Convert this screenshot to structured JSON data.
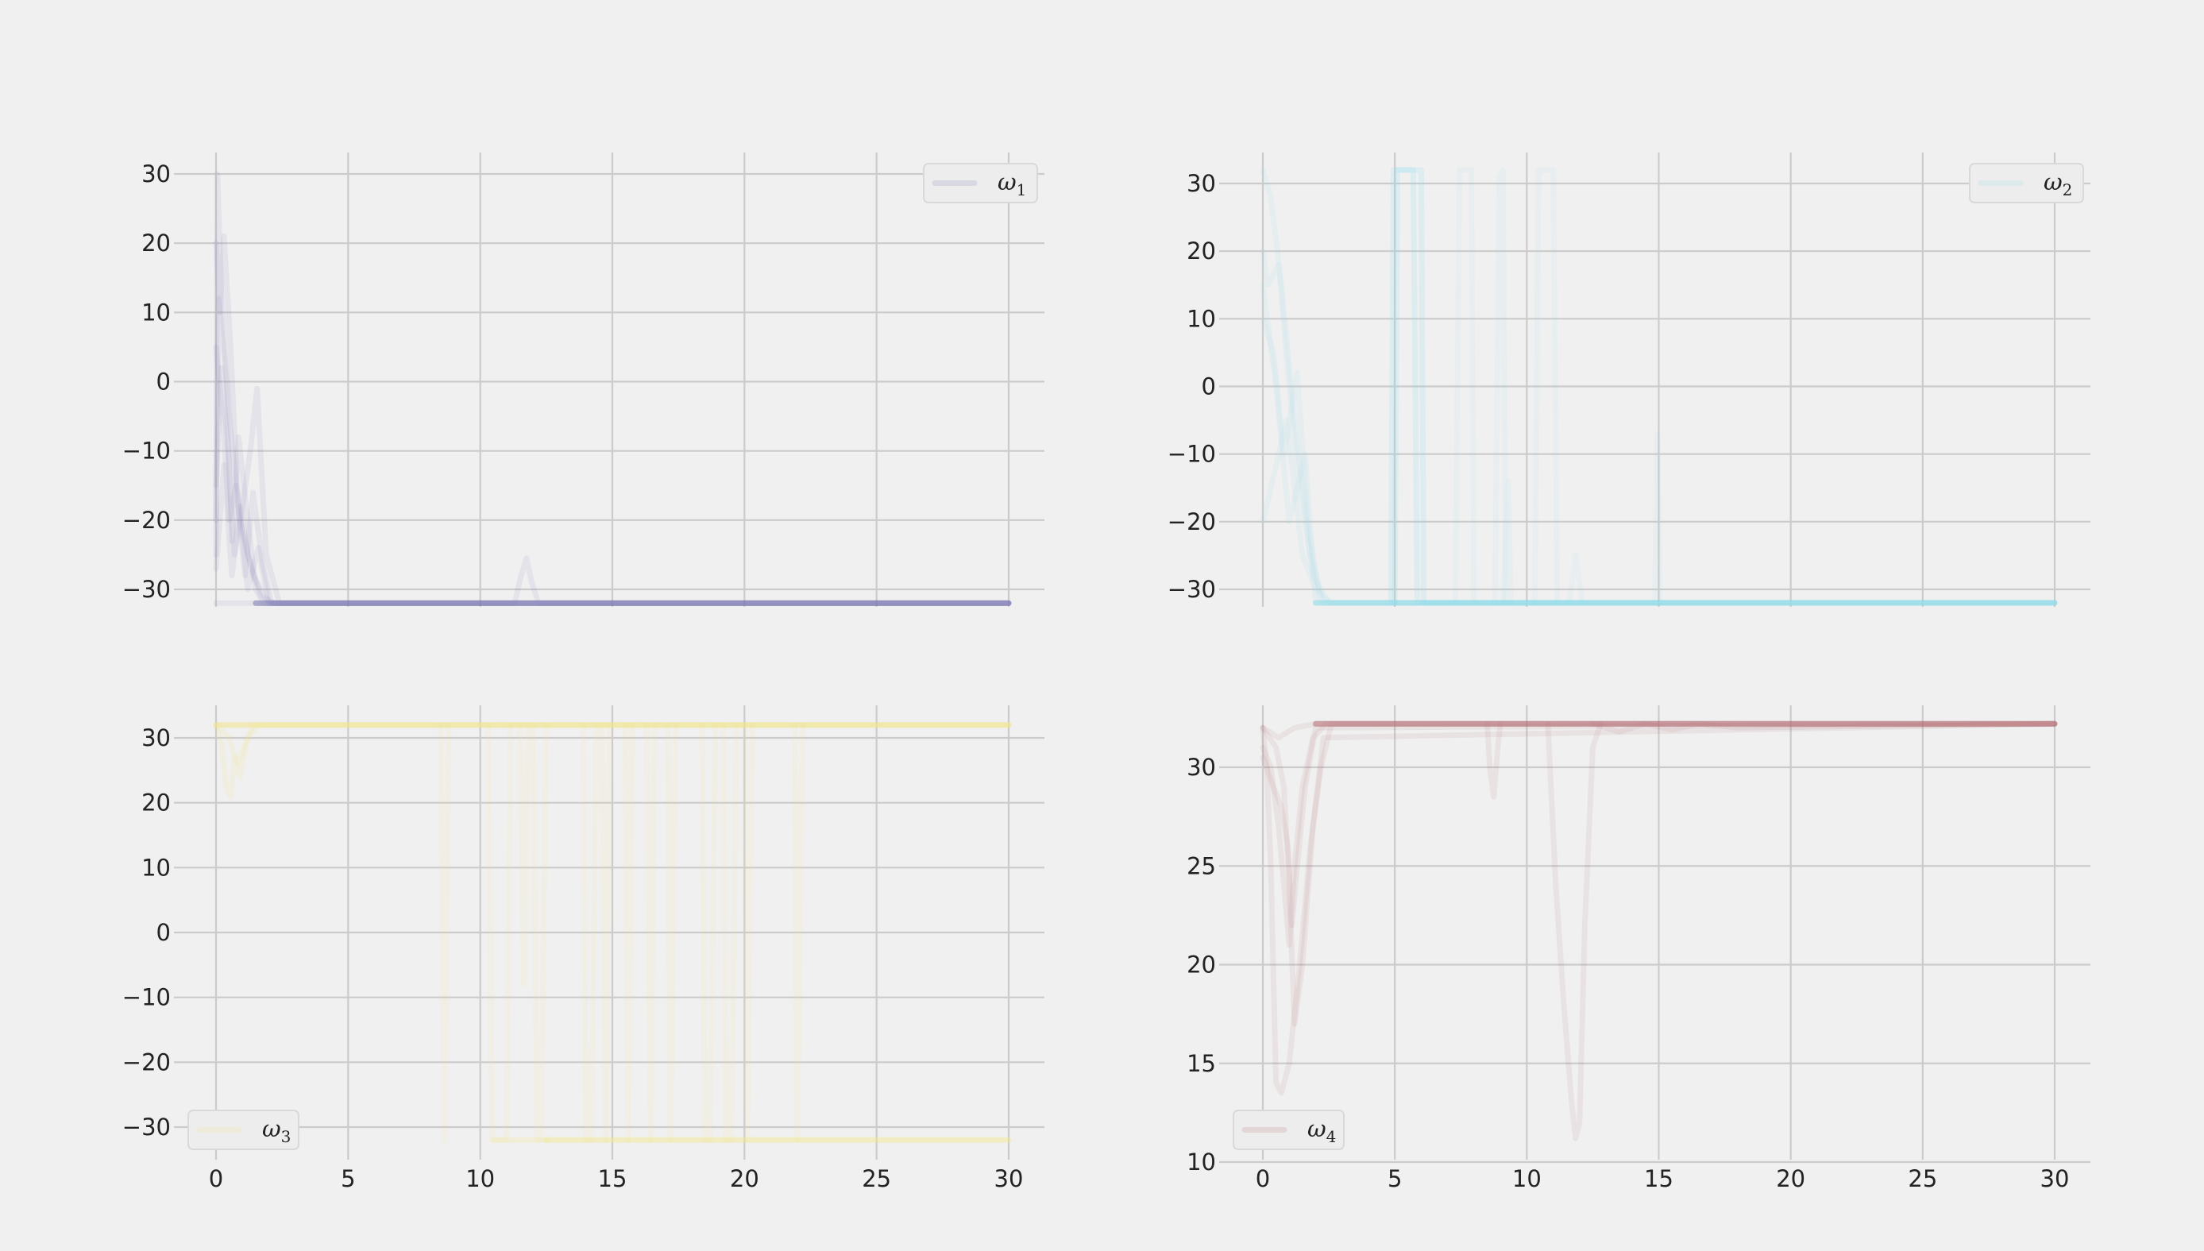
{
  "chart_data": [
    {
      "type": "line",
      "xlim": [
        0,
        30
      ],
      "ylim": [
        -34,
        33
      ],
      "xticks": [
        "0",
        "5",
        "10",
        "15",
        "20",
        "25",
        "30"
      ],
      "yticks": [
        "−30",
        "−20",
        "−10",
        "0",
        "10",
        "20",
        "30"
      ],
      "show_x_ticklabels": false,
      "grid": true,
      "legend": {
        "label": "ω",
        "subscript": "1",
        "placement": "top-right"
      },
      "color": "#7b78b5",
      "series": [
        {
          "opacity": 0.1,
          "x": [
            0,
            0.05,
            0.2,
            0.5,
            0.9,
            1.4,
            2.0,
            30
          ],
          "y": [
            -25,
            30,
            13,
            -5,
            -20,
            -28,
            -32,
            -32
          ]
        },
        {
          "opacity": 0.1,
          "x": [
            0,
            0.15,
            0.3,
            0.55,
            0.8,
            1.2,
            1.7,
            2.2,
            30
          ],
          "y": [
            20,
            10,
            21,
            5,
            -15,
            -25,
            -31,
            -32,
            -32
          ]
        },
        {
          "opacity": 0.1,
          "x": [
            0,
            0.2,
            0.45,
            0.7,
            1.0,
            1.3,
            1.55,
            1.9,
            2.4,
            30
          ],
          "y": [
            -15,
            2,
            -10,
            -25,
            -18,
            -10,
            -1,
            -25,
            -32,
            -32
          ]
        },
        {
          "opacity": 0.1,
          "x": [
            0,
            0.25,
            0.5,
            0.75,
            1.1,
            1.4,
            1.75,
            2.1,
            30
          ],
          "y": [
            5,
            -5,
            -20,
            -15,
            -28,
            -16,
            -26,
            -32,
            -32
          ]
        },
        {
          "opacity": 0.1,
          "x": [
            0,
            0.1,
            0.4,
            0.6,
            0.85,
            1.2,
            1.5,
            1.8,
            30
          ],
          "y": [
            -20,
            12,
            0,
            -23,
            -8,
            -20,
            -30,
            -32,
            -32
          ]
        },
        {
          "opacity": 0.1,
          "x": [
            0,
            0.3,
            0.6,
            0.9,
            1.2,
            1.6,
            2.0,
            30
          ],
          "y": [
            -27,
            -12,
            -28,
            -18,
            -30,
            -24,
            -32,
            -32
          ]
        },
        {
          "opacity": 0.1,
          "x": [
            0,
            2.2,
            11.3,
            11.55,
            11.75,
            11.95,
            12.2,
            30
          ],
          "y": [
            -32,
            -32,
            -32,
            -28,
            -25.5,
            -29,
            -32,
            -32
          ]
        },
        {
          "opacity": 0.55,
          "x": [
            1.5,
            30
          ],
          "y": [
            -32,
            -32
          ]
        }
      ]
    },
    {
      "type": "line",
      "xlim": [
        0,
        30
      ],
      "ylim": [
        -35,
        34
      ],
      "xticks": [
        "0",
        "5",
        "10",
        "15",
        "20",
        "25",
        "30"
      ],
      "yticks": [
        "−30",
        "−20",
        "−10",
        "0",
        "10",
        "20",
        "30"
      ],
      "show_x_ticklabels": false,
      "grid": true,
      "legend": {
        "label": "ω",
        "subscript": "2",
        "placement": "top-right"
      },
      "color": "#8fdcea",
      "series": [
        {
          "opacity": 0.1,
          "x": [
            0,
            0.3,
            0.7,
            1.2,
            1.8,
            2.3,
            30
          ],
          "y": [
            32,
            28,
            15,
            -5,
            -25,
            -32,
            -32
          ]
        },
        {
          "opacity": 0.1,
          "x": [
            0,
            0.2,
            0.6,
            1.0,
            1.4,
            1.9,
            2.5,
            30
          ],
          "y": [
            20,
            15,
            18,
            0,
            -15,
            -28,
            -32,
            -32
          ]
        },
        {
          "opacity": 0.1,
          "x": [
            0,
            0.4,
            0.8,
            1.3,
            1.7,
            2.2,
            30
          ],
          "y": [
            10,
            5,
            -10,
            2,
            -20,
            -32,
            -32
          ]
        },
        {
          "opacity": 0.1,
          "x": [
            0,
            0.3,
            0.9,
            1.5,
            2.0,
            2.6,
            30
          ],
          "y": [
            -20,
            -15,
            -5,
            -25,
            -30,
            -32,
            -32
          ]
        },
        {
          "opacity": 0.1,
          "x": [
            0,
            0.5,
            1.0,
            1.6,
            2.0,
            30
          ],
          "y": [
            15,
            0,
            -20,
            -10,
            -32,
            -32
          ]
        },
        {
          "opacity": 0.2,
          "x": [
            4.85,
            4.95,
            5.1,
            5.8,
            6.0,
            6.1,
            30
          ],
          "y": [
            -32,
            32,
            32,
            32,
            32,
            -32,
            -32
          ]
        },
        {
          "opacity": 0.2,
          "x": [
            5.0,
            5.1,
            5.3,
            5.7,
            5.85,
            30
          ],
          "y": [
            -32,
            32,
            32,
            32,
            -32,
            -32
          ]
        },
        {
          "opacity": 0.08,
          "x": [
            7.3,
            7.45,
            7.6,
            7.9,
            8.0
          ],
          "y": [
            -32,
            32,
            32,
            32,
            -32
          ]
        },
        {
          "opacity": 0.08,
          "x": [
            8.8,
            8.95,
            9.1,
            9.2
          ],
          "y": [
            -32,
            31,
            32,
            -32
          ]
        },
        {
          "opacity": 0.08,
          "x": [
            9.1,
            9.3,
            9.4
          ],
          "y": [
            -32,
            -14,
            -32
          ]
        },
        {
          "opacity": 0.08,
          "x": [
            10.3,
            10.45,
            10.6,
            11.0,
            11.15
          ],
          "y": [
            -32,
            32,
            32,
            32,
            -32
          ]
        },
        {
          "opacity": 0.08,
          "x": [
            11.6,
            11.85,
            12.1
          ],
          "y": [
            -32,
            -25,
            -32
          ]
        },
        {
          "opacity": 0.08,
          "x": [
            14.85,
            14.95,
            15.05
          ],
          "y": [
            -32,
            -7,
            -32
          ]
        },
        {
          "opacity": 0.55,
          "x": [
            2.0,
            30
          ],
          "y": [
            -32,
            -32
          ]
        }
      ]
    },
    {
      "type": "line",
      "xlim": [
        -0.8,
        31.3
      ],
      "ylim": [
        -34,
        35
      ],
      "xticks": [
        "0",
        "5",
        "10",
        "15",
        "20",
        "25",
        "30"
      ],
      "yticks": [
        "−30",
        "−20",
        "−10",
        "0",
        "10",
        "20",
        "30"
      ],
      "show_x_ticklabels": true,
      "grid": true,
      "legend": {
        "label": "ω",
        "subscript": "3",
        "placement": "bottom-left"
      },
      "color": "#f2e68a",
      "series": [
        {
          "opacity": 0.15,
          "x": [
            0,
            0.2,
            0.4,
            0.55,
            0.7,
            0.9,
            1.2,
            1.6,
            2.0,
            30
          ],
          "y": [
            32,
            29,
            22,
            21,
            27,
            24,
            30,
            32,
            32,
            32
          ]
        },
        {
          "opacity": 0.15,
          "x": [
            0,
            0.5,
            0.8,
            1.0,
            1.4,
            30
          ],
          "y": [
            32,
            30,
            26,
            28,
            32,
            32
          ]
        },
        {
          "opacity": 0.55,
          "x": [
            0,
            30
          ],
          "y": [
            32,
            32
          ]
        },
        {
          "opacity": 0.1,
          "x": [
            8.5,
            8.65,
            8.8
          ],
          "y": [
            32,
            -32,
            32
          ]
        },
        {
          "opacity": 0.1,
          "x": [
            10.3,
            10.45,
            10.6,
            11.0,
            11.15
          ],
          "y": [
            32,
            -32,
            -32,
            -32,
            32
          ]
        },
        {
          "opacity": 0.1,
          "x": [
            11.5,
            11.65,
            11.8
          ],
          "y": [
            32,
            -8,
            32
          ]
        },
        {
          "opacity": 0.1,
          "x": [
            12.0,
            12.15,
            12.3,
            12.5
          ],
          "y": [
            32,
            -32,
            -32,
            32
          ]
        },
        {
          "opacity": 0.1,
          "x": [
            13.9,
            14.0,
            14.2,
            14.4
          ],
          "y": [
            32,
            -32,
            -32,
            32
          ]
        },
        {
          "opacity": 0.1,
          "x": [
            14.6,
            14.75,
            14.9
          ],
          "y": [
            32,
            -32,
            32
          ]
        },
        {
          "opacity": 0.1,
          "x": [
            15.5,
            15.6,
            15.75
          ],
          "y": [
            32,
            -32,
            32
          ]
        },
        {
          "opacity": 0.1,
          "x": [
            16.3,
            16.45,
            16.6
          ],
          "y": [
            32,
            -32,
            32
          ]
        },
        {
          "opacity": 0.1,
          "x": [
            17.1,
            17.2,
            17.4
          ],
          "y": [
            32,
            -32,
            32
          ]
        },
        {
          "opacity": 0.1,
          "x": [
            18.4,
            18.5,
            18.7,
            18.9
          ],
          "y": [
            32,
            -32,
            -32,
            32
          ]
        },
        {
          "opacity": 0.1,
          "x": [
            19.2,
            19.3,
            19.5,
            19.7
          ],
          "y": [
            32,
            -32,
            -32,
            32
          ]
        },
        {
          "opacity": 0.1,
          "x": [
            20.0,
            20.1,
            20.3
          ],
          "y": [
            32,
            -32,
            32
          ]
        },
        {
          "opacity": 0.1,
          "x": [
            21.9,
            22.0,
            22.2
          ],
          "y": [
            32,
            -32,
            32
          ]
        },
        {
          "opacity": 0.45,
          "x": [
            12.5,
            30
          ],
          "y": [
            -32,
            -32
          ]
        },
        {
          "opacity": 0.25,
          "x": [
            10.5,
            12.5
          ],
          "y": [
            -32,
            -32
          ]
        }
      ]
    },
    {
      "type": "line",
      "xlim": [
        -0.8,
        31.3
      ],
      "ylim": [
        10,
        33.5
      ],
      "xticks": [
        "0",
        "5",
        "10",
        "15",
        "20",
        "25",
        "30"
      ],
      "yticks": [
        "10",
        "15",
        "20",
        "25",
        "30"
      ],
      "show_x_ticklabels": true,
      "grid": true,
      "legend": {
        "label": "ω",
        "subscript": "4",
        "placement": "bottom-left"
      },
      "color": "#b46e72",
      "series": [
        {
          "opacity": 0.1,
          "x": [
            0,
            0.15,
            0.3,
            0.5,
            0.7,
            1.0,
            1.4,
            1.8,
            2.2,
            2.6,
            30
          ],
          "y": [
            32,
            30,
            25,
            14,
            13.5,
            15,
            20,
            26,
            30,
            32.2,
            32.2
          ]
        },
        {
          "opacity": 0.1,
          "x": [
            0,
            0.3,
            0.6,
            0.8,
            1.0,
            1.2,
            1.5,
            1.9,
            2.4,
            30
          ],
          "y": [
            31,
            30,
            27,
            24,
            21,
            25,
            29,
            31.5,
            32.2,
            32.2
          ]
        },
        {
          "opacity": 0.1,
          "x": [
            0,
            0.4,
            0.7,
            0.95,
            1.1,
            1.3,
            1.6,
            2.0,
            30
          ],
          "y": [
            30.5,
            29,
            28,
            26,
            22,
            25,
            29,
            32,
            32.2
          ]
        },
        {
          "opacity": 0.1,
          "x": [
            0,
            0.5,
            0.8,
            1.0,
            1.2,
            1.5,
            1.9,
            2.3,
            30
          ],
          "y": [
            32,
            31,
            29,
            24,
            17,
            20,
            27,
            31.5,
            32.2
          ]
        },
        {
          "opacity": 0.1,
          "x": [
            0,
            0.6,
            1.2,
            2.0,
            30
          ],
          "y": [
            32,
            31.5,
            32,
            32.2,
            32.2
          ]
        },
        {
          "opacity": 0.1,
          "x": [
            8.5,
            8.6,
            8.75,
            8.9,
            9.0
          ],
          "y": [
            32.2,
            30,
            28.5,
            31,
            32.2
          ]
        },
        {
          "opacity": 0.1,
          "x": [
            10.8,
            11.1,
            11.4,
            11.7,
            11.85,
            12.0,
            12.2,
            12.5,
            12.8
          ],
          "y": [
            32.2,
            24,
            18,
            13,
            11.2,
            12,
            22,
            31,
            32.2
          ]
        },
        {
          "opacity": 0.1,
          "x": [
            12.5,
            13.5,
            14.5,
            15.5,
            16.5,
            18.0,
            30
          ],
          "y": [
            32.2,
            31.8,
            32.2,
            31.9,
            32.2,
            32,
            32.2
          ]
        },
        {
          "opacity": 0.55,
          "x": [
            2.0,
            30
          ],
          "y": [
            32.2,
            32.2
          ]
        }
      ]
    }
  ]
}
